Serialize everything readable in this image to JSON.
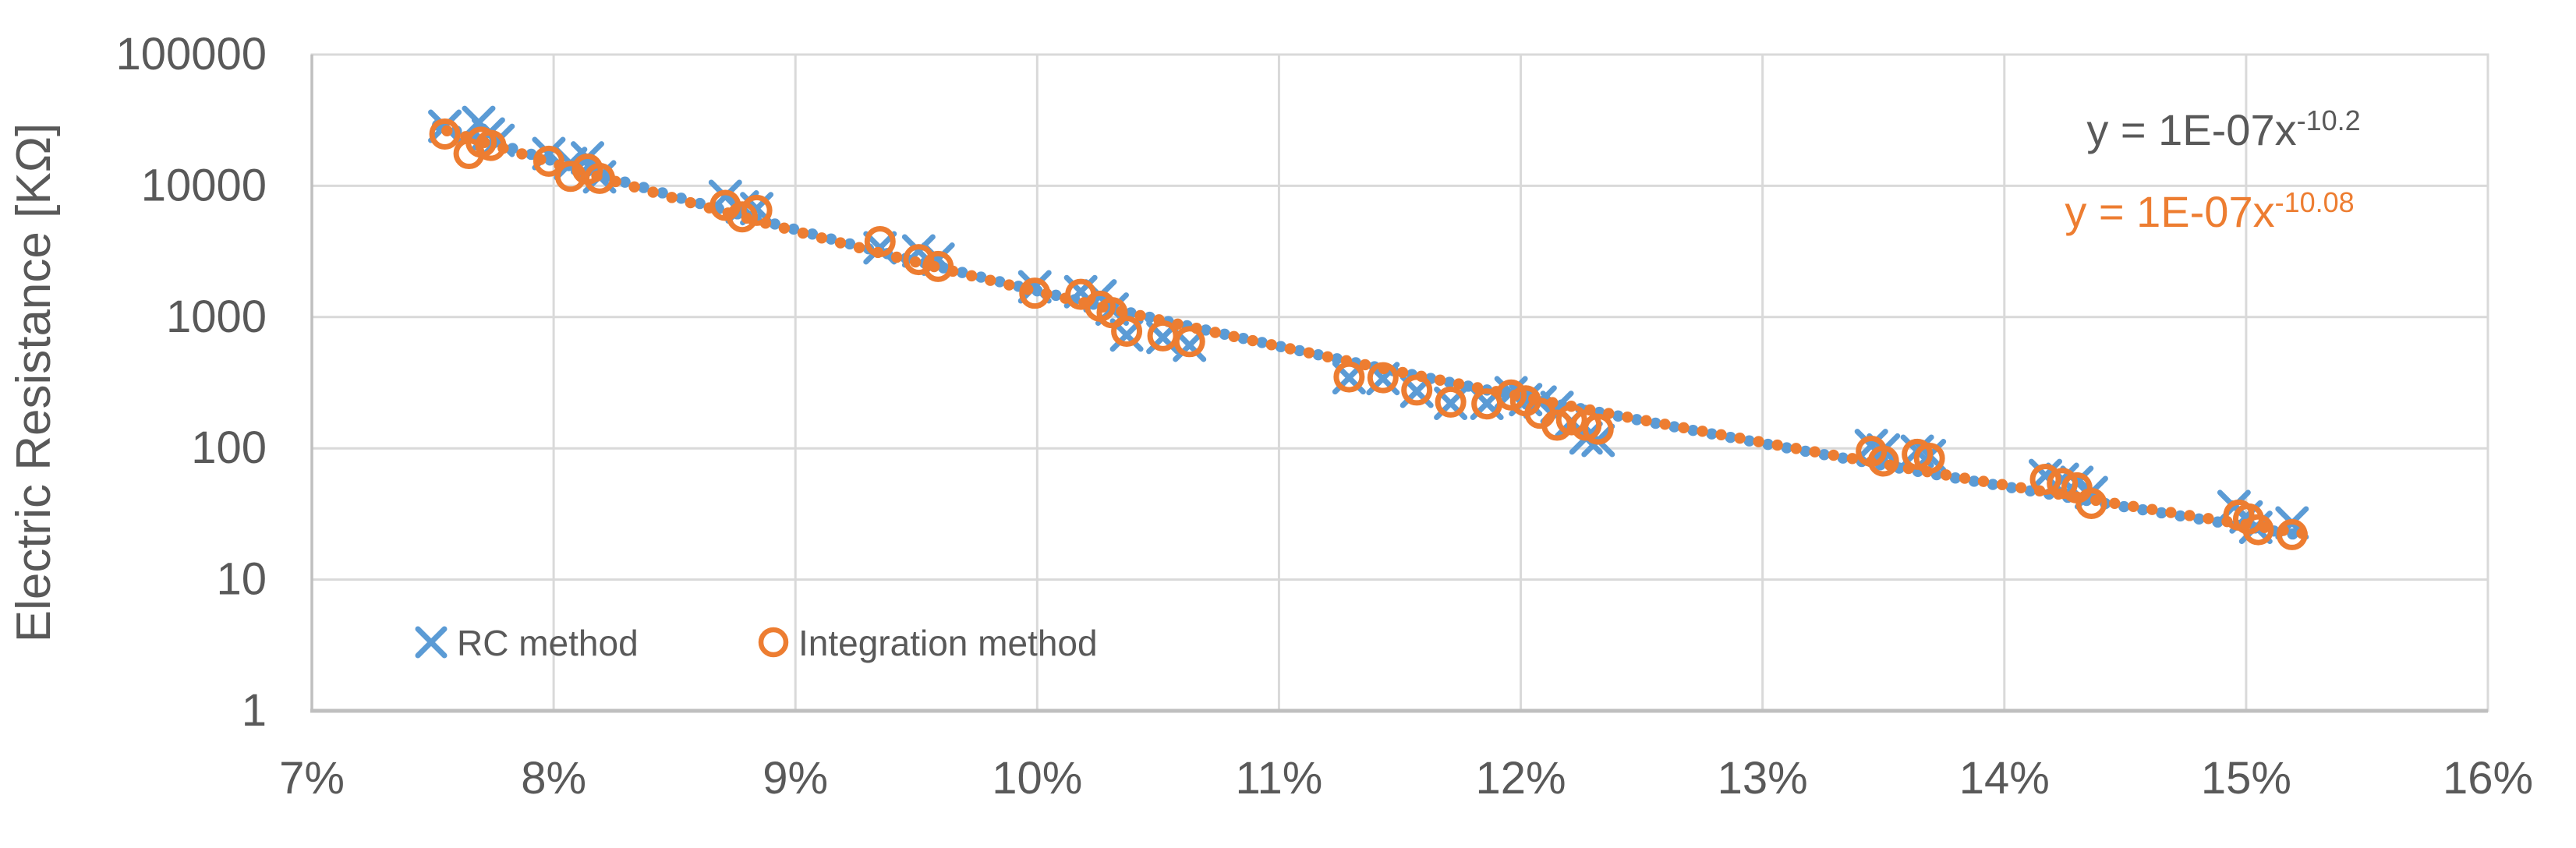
{
  "chart_data": {
    "type": "scatter",
    "title": "",
    "xlabel": "",
    "ylabel": "Electric Resistance [KΩ]",
    "grid": "on",
    "legend_position": "bottom-inside",
    "x_axis": {
      "ticks": [
        "7%",
        "8%",
        "9%",
        "10%",
        "11%",
        "12%",
        "13%",
        "14%",
        "15%",
        "16%"
      ],
      "min_pct": 7,
      "max_pct": 16
    },
    "y_axis": {
      "scale": "log",
      "ticks": [
        "1",
        "10",
        "100",
        "1000",
        "10000",
        "100000"
      ],
      "min": 1,
      "max": 100000
    },
    "series": [
      {
        "name": "RC method",
        "marker": "x",
        "color": "#5B9BD5",
        "points": [
          [
            7.55,
            28400
          ],
          [
            7.69,
            30400
          ],
          [
            7.73,
            24800
          ],
          [
            7.77,
            22200
          ],
          [
            7.98,
            17600
          ],
          [
            8.07,
            14800
          ],
          [
            8.14,
            16300
          ],
          [
            8.19,
            11700
          ],
          [
            8.71,
            8300
          ],
          [
            8.78,
            6900
          ],
          [
            8.84,
            6700
          ],
          [
            9.35,
            3370
          ],
          [
            9.51,
            3190
          ],
          [
            9.59,
            2760
          ],
          [
            9.99,
            1700
          ],
          [
            10.18,
            1560
          ],
          [
            10.26,
            1450
          ],
          [
            10.31,
            1150
          ],
          [
            10.37,
            730
          ],
          [
            10.52,
            700
          ],
          [
            10.63,
            610
          ],
          [
            11.29,
            345
          ],
          [
            11.43,
            340
          ],
          [
            11.57,
            272
          ],
          [
            11.71,
            220
          ],
          [
            11.86,
            220
          ],
          [
            11.96,
            265
          ],
          [
            12.02,
            235
          ],
          [
            12.08,
            225
          ],
          [
            12.15,
            205
          ],
          [
            12.21,
            160
          ],
          [
            12.27,
            120
          ],
          [
            12.32,
            115
          ],
          [
            13.45,
            105
          ],
          [
            13.5,
            97
          ],
          [
            13.64,
            95
          ],
          [
            13.69,
            88
          ],
          [
            14.17,
            62
          ],
          [
            14.24,
            58
          ],
          [
            14.3,
            55
          ],
          [
            14.36,
            46
          ],
          [
            14.95,
            36
          ],
          [
            15.0,
            30
          ],
          [
            15.04,
            25
          ],
          [
            15.19,
            27
          ]
        ]
      },
      {
        "name": "Integration method",
        "marker": "circle",
        "color": "#ED7D31",
        "points": [
          [
            7.55,
            24800
          ],
          [
            7.65,
            17600
          ],
          [
            7.7,
            21500
          ],
          [
            7.74,
            20300
          ],
          [
            7.98,
            15400
          ],
          [
            8.07,
            11800
          ],
          [
            8.14,
            13400
          ],
          [
            8.19,
            11400
          ],
          [
            8.71,
            7100
          ],
          [
            8.78,
            5800
          ],
          [
            8.84,
            6500
          ],
          [
            9.35,
            3760
          ],
          [
            9.51,
            2740
          ],
          [
            9.59,
            2430
          ],
          [
            9.99,
            1520
          ],
          [
            10.18,
            1490
          ],
          [
            10.26,
            1210
          ],
          [
            10.31,
            1080
          ],
          [
            10.37,
            780
          ],
          [
            10.52,
            720
          ],
          [
            10.63,
            650
          ],
          [
            11.29,
            350
          ],
          [
            11.43,
            345
          ],
          [
            11.57,
            278
          ],
          [
            11.71,
            225
          ],
          [
            11.86,
            218
          ],
          [
            11.96,
            255
          ],
          [
            12.02,
            230
          ],
          [
            12.08,
            185
          ],
          [
            12.15,
            150
          ],
          [
            12.21,
            165
          ],
          [
            12.27,
            150
          ],
          [
            12.32,
            140
          ],
          [
            13.45,
            95
          ],
          [
            13.5,
            80
          ],
          [
            13.64,
            90
          ],
          [
            13.69,
            84
          ],
          [
            14.17,
            58
          ],
          [
            14.24,
            54
          ],
          [
            14.3,
            50
          ],
          [
            14.36,
            38
          ],
          [
            14.97,
            31
          ],
          [
            15.01,
            29
          ],
          [
            15.05,
            24
          ],
          [
            15.19,
            22
          ]
        ]
      }
    ],
    "trendlines": [
      {
        "series": "RC method",
        "style": "dotted",
        "color": "#5B9BD5",
        "label_base": "y = 1E-07x",
        "label_exponent": "-10.2",
        "label_color": "#595959",
        "coef": 1e-07,
        "power": -10.2
      },
      {
        "series": "Integration method",
        "style": "dotted",
        "color": "#ED7D31",
        "label_base": "y = 1E-07x",
        "label_exponent": "-10.08",
        "label_color": "#ED7D31",
        "coef": 1e-07,
        "power": -10.08
      }
    ],
    "text_color": "#595959",
    "grid_color": "#D9D9D9",
    "axis_color": "#BFBFBF"
  }
}
